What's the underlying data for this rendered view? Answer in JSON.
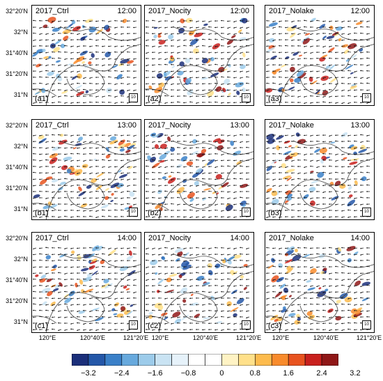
{
  "panels": [
    {
      "title": "2017_Ctrl",
      "time": "12:00",
      "label": "(a1)",
      "ref": "10"
    },
    {
      "title": "2017_Nocity",
      "time": "12:00",
      "label": "(a2)",
      "ref": "10"
    },
    {
      "title": "2017_Nolake",
      "time": "12:00",
      "label": "(a3)",
      "ref": "10"
    },
    {
      "title": "2017_Ctrl",
      "time": "13:00",
      "label": "(b1)",
      "ref": "10"
    },
    {
      "title": "2017_Nocity",
      "time": "13:00",
      "label": "(b2)",
      "ref": "10"
    },
    {
      "title": "2017_Nolake",
      "time": "13:00",
      "label": "(b3)",
      "ref": "10"
    },
    {
      "title": "2017_Ctrl",
      "time": "14:00",
      "label": "(c1)",
      "ref": "10"
    },
    {
      "title": "2017_Nocity",
      "time": "14:00",
      "label": "(c2)",
      "ref": "10"
    },
    {
      "title": "2017_Nolake",
      "time": "14:00",
      "label": "(c3)",
      "ref": "10"
    }
  ],
  "lat_labels": [
    "32°20'N",
    "32°N",
    "31°40'N",
    "31°20'N",
    "31°N"
  ],
  "lon_labels": [
    "120°E",
    "120°40'E",
    "121°20'E"
  ],
  "colorbar": {
    "colors": [
      "#1b2f7a",
      "#2457a8",
      "#3a80c8",
      "#67a9dd",
      "#9ccbea",
      "#c9e3f3",
      "#e6f2fa",
      "#ffffff",
      "#ffffff",
      "#fff3c4",
      "#ffe08a",
      "#fdbb4d",
      "#f88b2c",
      "#e8531f",
      "#c8201d",
      "#8f1717"
    ],
    "ticks": [
      "−3.2",
      "−2.4",
      "−1.6",
      "−0.8",
      "0",
      "0.8",
      "1.6",
      "2.4",
      "3.2"
    ]
  }
}
